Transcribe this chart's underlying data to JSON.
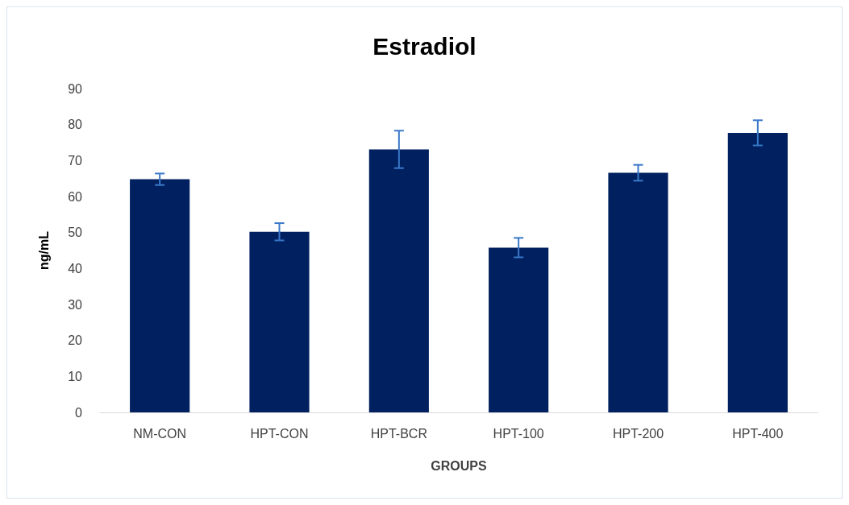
{
  "chart_data": {
    "type": "bar",
    "title": "Estradiol",
    "xlabel": "GROUPS",
    "ylabel": "ng/mL",
    "categories": [
      "NM-CON",
      "HPT-CON",
      "HPT-BCR",
      "HPT-100",
      "HPT-200",
      "HPT-400"
    ],
    "values": [
      64.8,
      50.2,
      73.1,
      45.8,
      66.6,
      77.7
    ],
    "errors": [
      1.6,
      2.4,
      5.2,
      2.7,
      2.2,
      3.5
    ],
    "color": "#002060",
    "ylim": [
      0,
      90
    ],
    "yticks": [
      0,
      10,
      20,
      30,
      40,
      50,
      60,
      70,
      80,
      90
    ],
    "grid": false
  }
}
